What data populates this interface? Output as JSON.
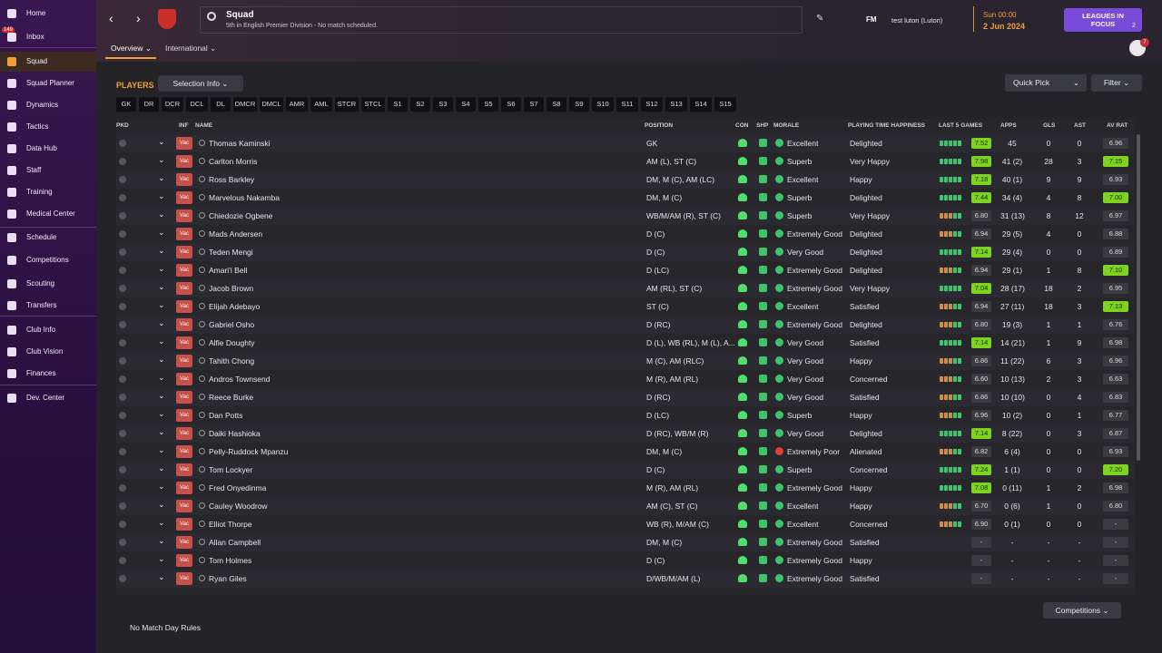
{
  "sidebar": {
    "items": [
      {
        "label": "Home"
      },
      {
        "label": "Inbox",
        "badge": "149"
      },
      {
        "label": "Squad"
      },
      {
        "label": "Squad Planner"
      },
      {
        "label": "Dynamics"
      },
      {
        "label": "Tactics"
      },
      {
        "label": "Data Hub"
      },
      {
        "label": "Staff"
      },
      {
        "label": "Training"
      },
      {
        "label": "Medical Center"
      },
      {
        "label": "Schedule"
      },
      {
        "label": "Competitions"
      },
      {
        "label": "Scouting"
      },
      {
        "label": "Transfers"
      },
      {
        "label": "Club Info"
      },
      {
        "label": "Club Vision"
      },
      {
        "label": "Finances"
      },
      {
        "label": "Dev. Center"
      }
    ]
  },
  "header": {
    "title": "Squad",
    "subtitle": "5th in English Premier Division - No match scheduled.",
    "brand": "FM",
    "manager": "test luton (Luton)",
    "time": "Sun 00:00",
    "date": "2 Jun 2024",
    "leagues_button": "LEAGUES IN FOCUS",
    "leagues_count": "2",
    "notifications": "7"
  },
  "tabs": [
    "Overview",
    "International"
  ],
  "toolbar": {
    "section": "PLAYERS",
    "selection": "Selection Info",
    "quick_pick": "Quick Pick",
    "filter": "Filter",
    "positions": [
      "GK",
      "DR",
      "DCR",
      "DCL",
      "DL",
      "DMCR",
      "DMCL",
      "AMR",
      "AML",
      "STCR",
      "STCL",
      "S1",
      "S2",
      "S3",
      "S4",
      "S5",
      "S6",
      "S7",
      "S8",
      "S9",
      "S10",
      "S11",
      "S12",
      "S13",
      "S14",
      "S15"
    ]
  },
  "table": {
    "columns": [
      "PKD",
      "INF",
      "NAME",
      "POSITION",
      "CON",
      "SHP",
      "MORALE",
      "PLAYING TIME HAPPINESS",
      "LAST 5 GAMES",
      "APPS",
      "GLS",
      "AST",
      "AV RAT"
    ],
    "rows": [
      {
        "inf": "Vac",
        "name": "Thomas Kaminski",
        "position": "GK",
        "morale": "Excellent",
        "happiness": "Delighted",
        "form": "7.52",
        "apps": "45",
        "gls": "0",
        "ast": "0",
        "avrat": "6.96"
      },
      {
        "inf": "Vac",
        "name": "Carlton Morris",
        "position": "AM (L), ST (C)",
        "morale": "Superb",
        "happiness": "Very Happy",
        "form": "7.98",
        "apps": "41 (2)",
        "gls": "28",
        "ast": "3",
        "avrat": "7.15"
      },
      {
        "inf": "Vac",
        "name": "Ross Barkley",
        "position": "DM, M (C), AM (LC)",
        "morale": "Excellent",
        "happiness": "Happy",
        "form": "7.18",
        "apps": "40 (1)",
        "gls": "9",
        "ast": "9",
        "avrat": "6.93"
      },
      {
        "inf": "Vac",
        "name": "Marvelous Nakamba",
        "position": "DM, M (C)",
        "morale": "Superb",
        "happiness": "Delighted",
        "form": "7.44",
        "apps": "34 (4)",
        "gls": "4",
        "ast": "8",
        "avrat": "7.00"
      },
      {
        "inf": "Vac",
        "name": "Chiedozie Ogbene",
        "position": "WB/M/AM (R), ST (C)",
        "morale": "Superb",
        "happiness": "Very Happy",
        "form": "6.80",
        "apps": "31 (13)",
        "gls": "8",
        "ast": "12",
        "avrat": "6.97"
      },
      {
        "inf": "Vac",
        "name": "Mads Andersen",
        "position": "D (C)",
        "morale": "Extremely Good",
        "happiness": "Delighted",
        "form": "6.94",
        "apps": "29 (5)",
        "gls": "4",
        "ast": "0",
        "avrat": "6.88"
      },
      {
        "inf": "Vac",
        "name": "Teden Mengi",
        "position": "D (C)",
        "morale": "Very Good",
        "happiness": "Delighted",
        "form": "7.14",
        "apps": "29 (4)",
        "gls": "0",
        "ast": "0",
        "avrat": "6.89"
      },
      {
        "inf": "Vac",
        "name": "Amari'i Bell",
        "position": "D (LC)",
        "morale": "Extremely Good",
        "happiness": "Delighted",
        "form": "6.94",
        "apps": "29 (1)",
        "gls": "1",
        "ast": "8",
        "avrat": "7.10"
      },
      {
        "inf": "Vac",
        "name": "Jacob Brown",
        "position": "AM (RL), ST (C)",
        "morale": "Extremely Good",
        "happiness": "Very Happy",
        "form": "7.04",
        "apps": "28 (17)",
        "gls": "18",
        "ast": "2",
        "avrat": "6.95"
      },
      {
        "inf": "Vac",
        "name": "Elijah Adebayo",
        "position": "ST (C)",
        "morale": "Excellent",
        "happiness": "Satisfied",
        "form": "6.94",
        "apps": "27 (11)",
        "gls": "18",
        "ast": "3",
        "avrat": "7.13"
      },
      {
        "inf": "Vac",
        "name": "Gabriel Osho",
        "position": "D (RC)",
        "morale": "Extremely Good",
        "happiness": "Delighted",
        "form": "6.80",
        "apps": "19 (3)",
        "gls": "1",
        "ast": "1",
        "avrat": "6.76"
      },
      {
        "inf": "Vac",
        "name": "Alfie Doughty",
        "position": "D (L), WB (RL), M (L), A...",
        "morale": "Very Good",
        "happiness": "Satisfied",
        "form": "7.14",
        "apps": "14 (21)",
        "gls": "1",
        "ast": "9",
        "avrat": "6.98"
      },
      {
        "inf": "Vac",
        "name": "Tahith Chong",
        "position": "M (C), AM (RLC)",
        "morale": "Very Good",
        "happiness": "Happy",
        "form": "6.86",
        "apps": "11 (22)",
        "gls": "6",
        "ast": "3",
        "avrat": "6.96"
      },
      {
        "inf": "Vac",
        "name": "Andros Townsend",
        "position": "M (R), AM (RL)",
        "morale": "Very Good",
        "happiness": "Concerned",
        "form": "6.60",
        "apps": "10 (13)",
        "gls": "2",
        "ast": "3",
        "avrat": "6.63"
      },
      {
        "inf": "Vac",
        "name": "Reece Burke",
        "position": "D (RC)",
        "morale": "Very Good",
        "happiness": "Satisfied",
        "form": "6.86",
        "apps": "10 (10)",
        "gls": "0",
        "ast": "4",
        "avrat": "6.83"
      },
      {
        "inf": "Vac",
        "name": "Dan Potts",
        "position": "D (LC)",
        "morale": "Superb",
        "happiness": "Happy",
        "form": "6.96",
        "apps": "10 (2)",
        "gls": "0",
        "ast": "1",
        "avrat": "6.77"
      },
      {
        "inf": "Vac",
        "name": "Daiki Hashioka",
        "position": "D (RC), WB/M (R)",
        "morale": "Very Good",
        "happiness": "Delighted",
        "form": "7.14",
        "apps": "8 (22)",
        "gls": "0",
        "ast": "3",
        "avrat": "6.87"
      },
      {
        "inf": "Vac",
        "name": "Pelly-Ruddock Mpanzu",
        "position": "DM, M (C)",
        "morale": "Extremely Poor",
        "happiness": "Alienated",
        "form": "6.82",
        "apps": "6 (4)",
        "gls": "0",
        "ast": "0",
        "avrat": "6.93"
      },
      {
        "inf": "Vac",
        "name": "Tom Lockyer",
        "position": "D (C)",
        "morale": "Superb",
        "happiness": "Concerned",
        "form": "7.24",
        "apps": "1 (1)",
        "gls": "0",
        "ast": "0",
        "avrat": "7.20"
      },
      {
        "inf": "Vac",
        "name": "Fred Onyedinma",
        "position": "M (R), AM (RL)",
        "morale": "Extremely Good",
        "happiness": "Happy",
        "form": "7.08",
        "apps": "0 (11)",
        "gls": "1",
        "ast": "2",
        "avrat": "6.98"
      },
      {
        "inf": "Vac",
        "name": "Cauley Woodrow",
        "position": "AM (C), ST (C)",
        "morale": "Excellent",
        "happiness": "Happy",
        "form": "6.70",
        "apps": "0 (6)",
        "gls": "1",
        "ast": "0",
        "avrat": "6.80"
      },
      {
        "inf": "Vac",
        "name": "Elliot Thorpe",
        "position": "WB (R), M/AM (C)",
        "morale": "Excellent",
        "happiness": "Concerned",
        "form": "6.90",
        "apps": "0 (1)",
        "gls": "0",
        "ast": "0",
        "avrat": "-"
      },
      {
        "inf": "Vac",
        "name": "Allan Campbell",
        "position": "DM, M (C)",
        "morale": "Extremely Good",
        "happiness": "Satisfied",
        "form": "-",
        "apps": "-",
        "gls": "-",
        "ast": "-",
        "avrat": "-"
      },
      {
        "inf": "Vac",
        "name": "Tom Holmes",
        "position": "D (C)",
        "morale": "Extremely Good",
        "happiness": "Happy",
        "form": "-",
        "apps": "-",
        "gls": "-",
        "ast": "-",
        "avrat": "-"
      },
      {
        "inf": "Vac",
        "name": "Ryan Giles",
        "position": "D/WB/M/AM (L)",
        "morale": "Extremely Good",
        "happiness": "Satisfied",
        "form": "-",
        "apps": "-",
        "gls": "-",
        "ast": "-",
        "avrat": "-"
      }
    ]
  },
  "footer": {
    "rules": "No Match Day Rules",
    "competitions": "Competitions"
  }
}
